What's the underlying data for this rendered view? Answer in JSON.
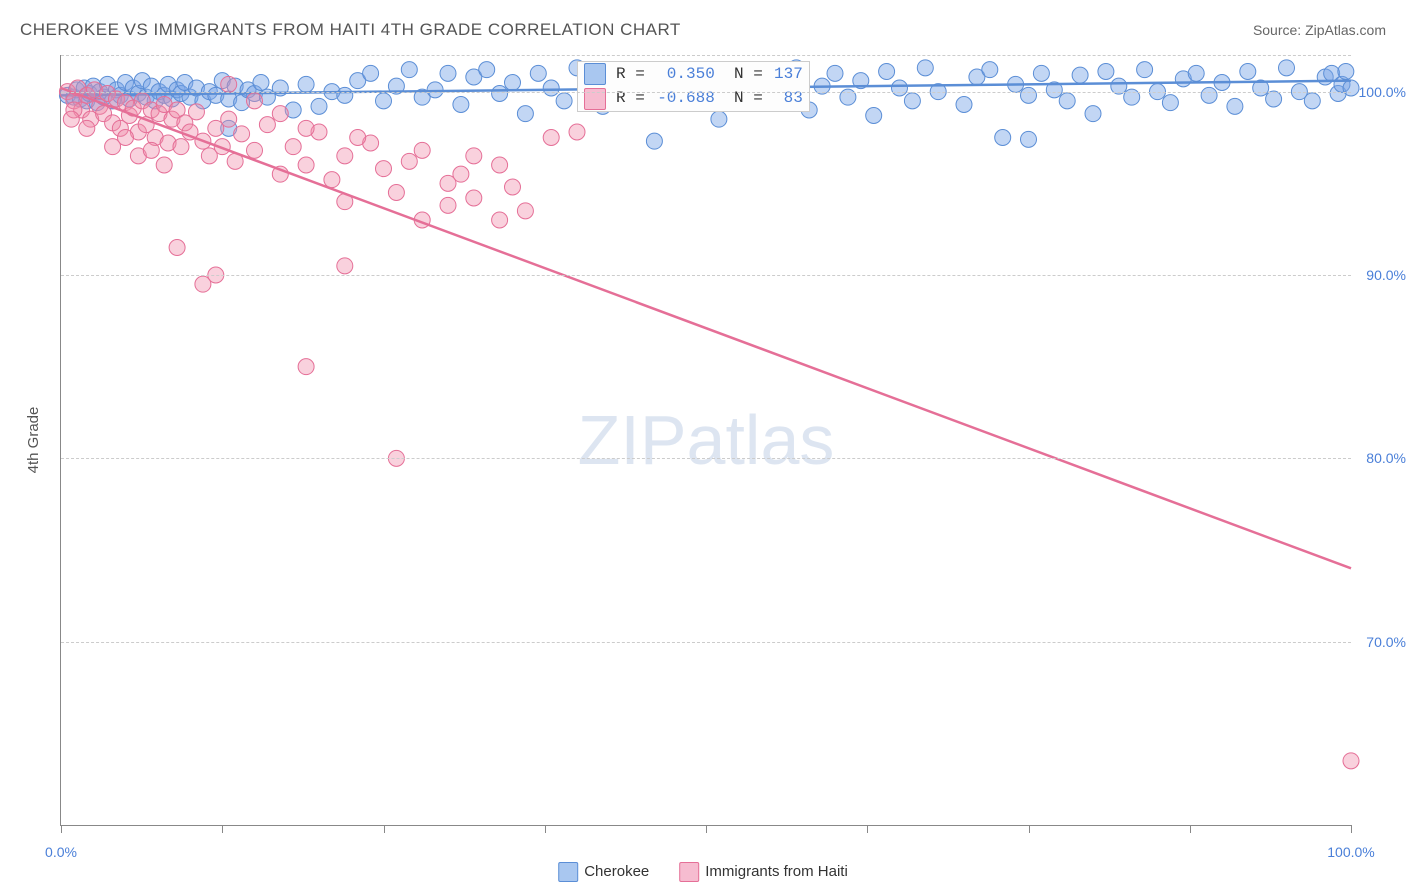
{
  "title": "CHEROKEE VS IMMIGRANTS FROM HAITI 4TH GRADE CORRELATION CHART",
  "source": "Source: ZipAtlas.com",
  "yaxis_label": "4th Grade",
  "watermark_a": "ZIP",
  "watermark_b": "atlas",
  "chart": {
    "type": "scatter",
    "background_color": "#ffffff",
    "grid_color": "#cccccc",
    "axis_color": "#888888",
    "title_color": "#555555",
    "title_fontsize": 17,
    "tick_label_color": "#4a7fd8",
    "tick_label_fontsize": 14,
    "xlim": [
      0,
      100
    ],
    "ylim": [
      60,
      102
    ],
    "x_ticks": [
      0,
      12.5,
      25,
      37.5,
      50,
      62.5,
      75,
      87.5,
      100
    ],
    "x_tick_labels": {
      "0": "0.0%",
      "100": "100.0%"
    },
    "y_gridlines": [
      70,
      80,
      90,
      100,
      102
    ],
    "y_tick_labels": {
      "70": "70.0%",
      "80": "80.0%",
      "90": "90.0%",
      "100": "100.0%"
    }
  },
  "series": [
    {
      "name": "Cherokee",
      "color_fill": "rgba(120,165,230,0.45)",
      "color_stroke": "#5b8ed6",
      "swatch_fill": "#a9c7f0",
      "swatch_border": "#5b8ed6",
      "marker_radius": 8,
      "line_width": 2.5,
      "trend": {
        "x1": 0,
        "y1": 99.8,
        "x2": 100,
        "y2": 100.6
      },
      "stats": {
        "R": "0.350",
        "N": "137"
      },
      "points": [
        [
          0.5,
          99.8
        ],
        [
          1,
          99.7
        ],
        [
          1.2,
          100.1
        ],
        [
          1.5,
          99.6
        ],
        [
          1.8,
          100.2
        ],
        [
          2,
          99.5
        ],
        [
          2.2,
          99.9
        ],
        [
          2.5,
          100.3
        ],
        [
          2.8,
          99.4
        ],
        [
          3,
          100.0
        ],
        [
          3.3,
          99.7
        ],
        [
          3.6,
          100.4
        ],
        [
          4,
          99.5
        ],
        [
          4.3,
          100.1
        ],
        [
          4.6,
          99.8
        ],
        [
          5,
          100.5
        ],
        [
          5.3,
          99.6
        ],
        [
          5.6,
          100.2
        ],
        [
          6,
          99.9
        ],
        [
          6.3,
          100.6
        ],
        [
          6.6,
          99.7
        ],
        [
          7,
          100.3
        ],
        [
          7.3,
          99.5
        ],
        [
          7.6,
          100.0
        ],
        [
          8,
          99.8
        ],
        [
          8.3,
          100.4
        ],
        [
          8.6,
          99.6
        ],
        [
          9,
          100.1
        ],
        [
          9.3,
          99.9
        ],
        [
          9.6,
          100.5
        ],
        [
          10,
          99.7
        ],
        [
          10.5,
          100.2
        ],
        [
          11,
          99.5
        ],
        [
          11.5,
          100.0
        ],
        [
          12,
          99.8
        ],
        [
          12.5,
          100.6
        ],
        [
          13,
          99.6
        ],
        [
          13.5,
          100.3
        ],
        [
          14,
          99.4
        ],
        [
          14.5,
          100.1
        ],
        [
          15,
          99.9
        ],
        [
          15.5,
          100.5
        ],
        [
          16,
          99.7
        ],
        [
          17,
          100.2
        ],
        [
          18,
          99.0
        ],
        [
          19,
          100.4
        ],
        [
          20,
          99.2
        ],
        [
          21,
          100.0
        ],
        [
          22,
          99.8
        ],
        [
          23,
          100.6
        ],
        [
          24,
          101.0
        ],
        [
          25,
          99.5
        ],
        [
          26,
          100.3
        ],
        [
          27,
          101.2
        ],
        [
          28,
          99.7
        ],
        [
          29,
          100.1
        ],
        [
          30,
          101.0
        ],
        [
          31,
          99.3
        ],
        [
          32,
          100.8
        ],
        [
          33,
          101.2
        ],
        [
          34,
          99.9
        ],
        [
          35,
          100.5
        ],
        [
          36,
          98.8
        ],
        [
          37,
          101.0
        ],
        [
          38,
          100.2
        ],
        [
          39,
          99.5
        ],
        [
          40,
          101.3
        ],
        [
          41,
          100.0
        ],
        [
          42,
          99.2
        ],
        [
          43,
          100.8
        ],
        [
          44,
          101.1
        ],
        [
          45,
          99.6
        ],
        [
          46,
          97.3
        ],
        [
          47,
          100.4
        ],
        [
          48,
          101.0
        ],
        [
          49,
          99.8
        ],
        [
          50,
          100.5
        ],
        [
          51,
          98.5
        ],
        [
          52,
          101.2
        ],
        [
          53,
          100.0
        ],
        [
          55,
          99.4
        ],
        [
          56,
          100.9
        ],
        [
          57,
          101.3
        ],
        [
          58,
          99.0
        ],
        [
          59,
          100.3
        ],
        [
          60,
          101.0
        ],
        [
          61,
          99.7
        ],
        [
          62,
          100.6
        ],
        [
          63,
          98.7
        ],
        [
          64,
          101.1
        ],
        [
          65,
          100.2
        ],
        [
          66,
          99.5
        ],
        [
          67,
          101.3
        ],
        [
          68,
          100.0
        ],
        [
          70,
          99.3
        ],
        [
          71,
          100.8
        ],
        [
          72,
          101.2
        ],
        [
          73,
          97.5
        ],
        [
          74,
          100.4
        ],
        [
          75,
          99.8
        ],
        [
          76,
          101.0
        ],
        [
          77,
          100.1
        ],
        [
          78,
          99.5
        ],
        [
          79,
          100.9
        ],
        [
          80,
          98.8
        ],
        [
          81,
          101.1
        ],
        [
          82,
          100.3
        ],
        [
          83,
          99.7
        ],
        [
          84,
          101.2
        ],
        [
          85,
          100.0
        ],
        [
          86,
          99.4
        ],
        [
          87,
          100.7
        ],
        [
          88,
          101.0
        ],
        [
          89,
          99.8
        ],
        [
          90,
          100.5
        ],
        [
          91,
          99.2
        ],
        [
          92,
          101.1
        ],
        [
          93,
          100.2
        ],
        [
          94,
          99.6
        ],
        [
          95,
          101.3
        ],
        [
          96,
          100.0
        ],
        [
          97,
          99.5
        ],
        [
          98,
          100.8
        ],
        [
          98.5,
          101.0
        ],
        [
          99,
          99.9
        ],
        [
          99.3,
          100.4
        ],
        [
          99.6,
          101.1
        ],
        [
          100,
          100.2
        ],
        [
          13,
          98.0
        ],
        [
          75,
          97.4
        ]
      ]
    },
    {
      "name": "Immigrants from Haiti",
      "color_fill": "rgba(240,140,170,0.4)",
      "color_stroke": "#e56f97",
      "swatch_fill": "#f6bcd0",
      "swatch_border": "#e56f97",
      "marker_radius": 8,
      "line_width": 2.5,
      "trend": {
        "x1": 0,
        "y1": 100.2,
        "x2": 100,
        "y2": 74.0
      },
      "stats": {
        "R": "-0.688",
        "N": "83"
      },
      "points": [
        [
          0.5,
          100.0
        ],
        [
          1,
          99.5
        ],
        [
          1.3,
          100.2
        ],
        [
          1.6,
          99.0
        ],
        [
          2,
          99.8
        ],
        [
          2.3,
          98.5
        ],
        [
          2.6,
          100.1
        ],
        [
          3,
          99.2
        ],
        [
          3.3,
          98.8
        ],
        [
          3.6,
          99.9
        ],
        [
          4,
          98.3
        ],
        [
          4.3,
          99.6
        ],
        [
          4.6,
          98.0
        ],
        [
          5,
          99.4
        ],
        [
          5.3,
          98.7
        ],
        [
          5.6,
          99.1
        ],
        [
          6,
          97.8
        ],
        [
          6.3,
          99.5
        ],
        [
          6.6,
          98.2
        ],
        [
          7,
          99.0
        ],
        [
          7.3,
          97.5
        ],
        [
          7.6,
          98.8
        ],
        [
          8,
          99.3
        ],
        [
          8.3,
          97.2
        ],
        [
          8.6,
          98.5
        ],
        [
          9,
          99.0
        ],
        [
          9.3,
          97.0
        ],
        [
          9.6,
          98.3
        ],
        [
          10,
          97.8
        ],
        [
          10.5,
          98.9
        ],
        [
          11,
          97.3
        ],
        [
          11.5,
          96.5
        ],
        [
          12,
          98.0
        ],
        [
          12.5,
          97.0
        ],
        [
          13,
          98.5
        ],
        [
          13.5,
          96.2
        ],
        [
          14,
          97.7
        ],
        [
          15,
          96.8
        ],
        [
          16,
          98.2
        ],
        [
          17,
          95.5
        ],
        [
          18,
          97.0
        ],
        [
          19,
          96.0
        ],
        [
          20,
          97.8
        ],
        [
          21,
          95.2
        ],
        [
          22,
          96.5
        ],
        [
          24,
          97.2
        ],
        [
          25,
          95.8
        ],
        [
          26,
          94.5
        ],
        [
          28,
          96.8
        ],
        [
          30,
          95.0
        ],
        [
          32,
          94.2
        ],
        [
          34,
          96.0
        ],
        [
          36,
          93.5
        ],
        [
          38,
          97.5
        ],
        [
          9,
          91.5
        ],
        [
          11,
          89.5
        ],
        [
          12,
          90.0
        ],
        [
          19,
          85.0
        ],
        [
          22,
          90.5
        ],
        [
          22,
          94.0
        ],
        [
          28,
          93.0
        ],
        [
          30,
          93.8
        ],
        [
          32,
          96.5
        ],
        [
          34,
          93.0
        ],
        [
          26,
          80.0
        ],
        [
          13,
          100.4
        ],
        [
          6,
          96.5
        ],
        [
          8,
          96.0
        ],
        [
          4,
          97.0
        ],
        [
          2,
          98.0
        ],
        [
          1,
          99.0
        ],
        [
          0.8,
          98.5
        ],
        [
          15,
          99.5
        ],
        [
          17,
          98.8
        ],
        [
          19,
          98.0
        ],
        [
          23,
          97.5
        ],
        [
          27,
          96.2
        ],
        [
          31,
          95.5
        ],
        [
          35,
          94.8
        ],
        [
          40,
          97.8
        ],
        [
          100,
          63.5
        ],
        [
          5,
          97.5
        ],
        [
          7,
          96.8
        ]
      ]
    }
  ],
  "legend": {
    "items": [
      {
        "label": "Cherokee"
      },
      {
        "label": "Immigrants from Haiti"
      }
    ]
  },
  "stats_box": {
    "rows": [
      {
        "R_label": "R =",
        "N_label": "N ="
      },
      {
        "R_label": "R =",
        "N_label": "N ="
      }
    ]
  }
}
